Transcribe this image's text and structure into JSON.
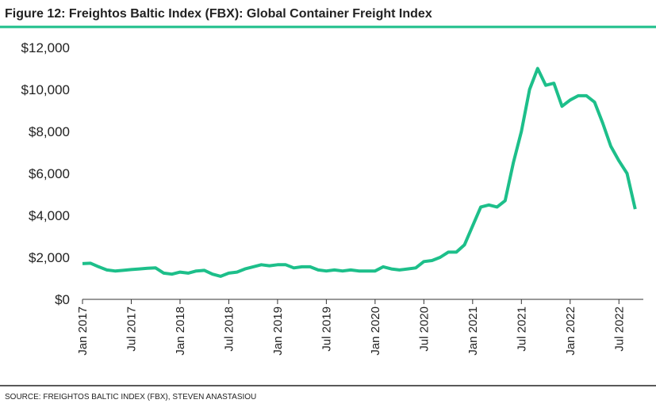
{
  "chart_data": {
    "type": "line",
    "title": "Figure 12: Freightos Baltic Index (FBX): Global Container Freight Index",
    "source": "SOURCE: FREIGHTOS BALTIC INDEX (FBX), STEVEN ANASTASIOU",
    "x": [
      "2017-01",
      "2017-02",
      "2017-03",
      "2017-04",
      "2017-05",
      "2017-06",
      "2017-07",
      "2017-08",
      "2017-09",
      "2017-10",
      "2017-11",
      "2017-12",
      "2018-01",
      "2018-02",
      "2018-03",
      "2018-04",
      "2018-05",
      "2018-06",
      "2018-07",
      "2018-08",
      "2018-09",
      "2018-10",
      "2018-11",
      "2018-12",
      "2019-01",
      "2019-02",
      "2019-03",
      "2019-04",
      "2019-05",
      "2019-06",
      "2019-07",
      "2019-08",
      "2019-09",
      "2019-10",
      "2019-11",
      "2019-12",
      "2020-01",
      "2020-02",
      "2020-03",
      "2020-04",
      "2020-05",
      "2020-06",
      "2020-07",
      "2020-08",
      "2020-09",
      "2020-10",
      "2020-11",
      "2020-12",
      "2021-01",
      "2021-02",
      "2021-03",
      "2021-04",
      "2021-05",
      "2021-06",
      "2021-07",
      "2021-08",
      "2021-09",
      "2021-10",
      "2021-11",
      "2021-12",
      "2022-01",
      "2022-02",
      "2022-03",
      "2022-04",
      "2022-05",
      "2022-06",
      "2022-07",
      "2022-08",
      "2022-09"
    ],
    "series": [
      {
        "name": "FBX",
        "color": "#1dbf8a",
        "values": [
          1700,
          1720,
          1550,
          1400,
          1350,
          1380,
          1420,
          1450,
          1480,
          1500,
          1250,
          1200,
          1300,
          1250,
          1350,
          1380,
          1200,
          1100,
          1250,
          1300,
          1450,
          1550,
          1650,
          1600,
          1650,
          1650,
          1500,
          1550,
          1550,
          1400,
          1350,
          1400,
          1350,
          1400,
          1350,
          1350,
          1350,
          1550,
          1450,
          1400,
          1450,
          1500,
          1800,
          1850,
          2000,
          2250,
          2250,
          2600,
          3500,
          4400,
          4500,
          4400,
          4700,
          6500,
          8000,
          10000,
          11000,
          10200,
          10300,
          9200,
          9500,
          9700,
          9700,
          9400,
          8400,
          7300,
          6600,
          6000,
          4300
        ]
      }
    ],
    "xlim": [
      "2017-01",
      "2022-10"
    ],
    "xticks": [
      {
        "value": "2017-01",
        "label": "Jan 2017"
      },
      {
        "value": "2017-07",
        "label": "Jul 2017"
      },
      {
        "value": "2018-01",
        "label": "Jan 2018"
      },
      {
        "value": "2018-07",
        "label": "Jul 2018"
      },
      {
        "value": "2019-01",
        "label": "Jan 2019"
      },
      {
        "value": "2019-07",
        "label": "Jul 2019"
      },
      {
        "value": "2020-01",
        "label": "Jan 2020"
      },
      {
        "value": "2020-07",
        "label": "Jul 2020"
      },
      {
        "value": "2021-01",
        "label": "Jan 2021"
      },
      {
        "value": "2021-07",
        "label": "Jul 2021"
      },
      {
        "value": "2022-01",
        "label": "Jan 2022"
      },
      {
        "value": "2022-07",
        "label": "Jul 2022"
      }
    ],
    "ylim": [
      0,
      12000
    ],
    "yticks": [
      {
        "value": 0,
        "label": "$0"
      },
      {
        "value": 2000,
        "label": "$2,000"
      },
      {
        "value": 4000,
        "label": "$4,000"
      },
      {
        "value": 6000,
        "label": "$6,000"
      },
      {
        "value": 8000,
        "label": "$8,000"
      },
      {
        "value": 10000,
        "label": "$10,000"
      },
      {
        "value": 12000,
        "label": "$12,000"
      }
    ]
  }
}
